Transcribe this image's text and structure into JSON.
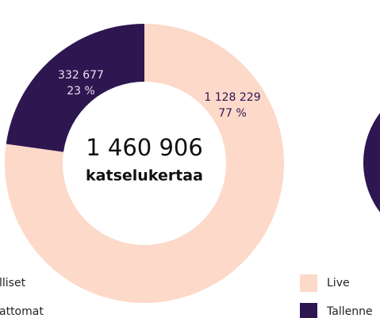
{
  "chart_data": [
    {
      "type": "donut",
      "categories": [
        "lliset",
        "attomat"
      ],
      "values": [
        1128229,
        332677
      ],
      "value_labels": [
        "1 128 229",
        "332 677"
      ],
      "percent_labels": [
        "77 %",
        "23 %"
      ],
      "colors": [
        "#fdd9c9",
        "#2e1650"
      ],
      "total_label": "1 460 906",
      "total_caption": "katselukertaa"
    },
    {
      "type": "donut",
      "categories": [
        "Live",
        "Tallenne"
      ],
      "colors": [
        "#fdd9c9",
        "#2e1650"
      ]
    }
  ]
}
